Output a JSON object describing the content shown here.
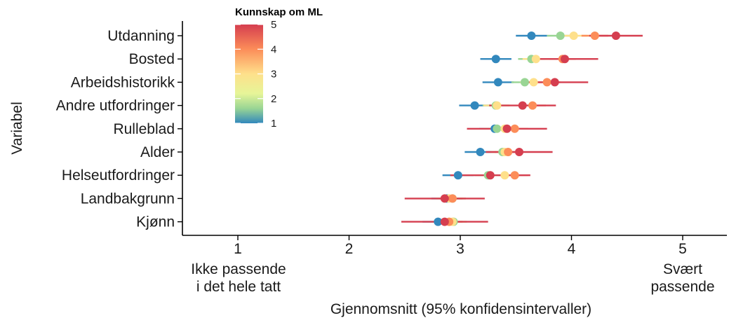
{
  "chart_data": {
    "type": "scatter",
    "xlabel": "Gjennomsnitt (95% konfidensintervaller)",
    "ylabel": "Variabel",
    "xlim": [
      0.5,
      5.35
    ],
    "xticks": [
      1,
      2,
      3,
      4,
      5
    ],
    "x_end_labels": {
      "low": [
        "Ikke passende",
        "i det hele tatt"
      ],
      "high": [
        "Svært",
        "passende"
      ]
    },
    "legend": {
      "title": "Kunnskap om ML",
      "ticks": [
        5,
        4,
        3,
        2,
        1
      ],
      "colors": [
        "#d53e4f",
        "#fc8d59",
        "#fee08b",
        "#e6f598",
        "#99d594",
        "#3288bd"
      ]
    },
    "categories": [
      "Utdanning",
      "Bosted",
      "Arbeidshistorikk",
      "Andre utfordringer",
      "Rulleblad",
      "Alder",
      "Helseutfordringer",
      "Landbakgrunn",
      "Kjønn"
    ],
    "series": [
      {
        "name": "1",
        "color": "#3288bd",
        "means": [
          3.64,
          3.32,
          3.34,
          3.13,
          3.31,
          3.18,
          2.98,
          2.88,
          2.8
        ],
        "ci_low": [
          3.5,
          3.18,
          3.2,
          2.99,
          3.17,
          3.04,
          2.84,
          2.74,
          2.66
        ],
        "ci_high": [
          3.78,
          3.46,
          3.48,
          3.27,
          3.45,
          3.32,
          3.12,
          3.02,
          2.94
        ]
      },
      {
        "name": "2",
        "color": "#99d594",
        "means": [
          3.9,
          3.64,
          3.58,
          3.32,
          3.33,
          3.38,
          3.25,
          2.93,
          2.94
        ],
        "ci_low": [
          3.78,
          3.52,
          3.46,
          3.2,
          3.21,
          3.26,
          3.13,
          2.81,
          2.82
        ],
        "ci_high": [
          4.02,
          3.76,
          3.7,
          3.44,
          3.45,
          3.5,
          3.37,
          3.05,
          3.06
        ]
      },
      {
        "name": "3",
        "color": "#fee08b",
        "means": [
          4.02,
          3.68,
          3.66,
          3.33,
          3.4,
          3.4,
          3.4,
          2.9,
          2.93
        ],
        "ci_low": [
          3.9,
          3.56,
          3.54,
          3.21,
          3.28,
          3.28,
          3.28,
          2.78,
          2.81
        ],
        "ci_high": [
          4.14,
          3.8,
          3.78,
          3.45,
          3.52,
          3.52,
          3.52,
          3.02,
          3.05
        ]
      },
      {
        "name": "4",
        "color": "#fc8d59",
        "means": [
          4.21,
          3.92,
          3.78,
          3.65,
          3.49,
          3.43,
          3.49,
          2.93,
          2.9
        ],
        "ci_low": [
          4.09,
          3.8,
          3.66,
          3.53,
          3.37,
          3.31,
          3.37,
          2.81,
          2.78
        ],
        "ci_high": [
          4.33,
          4.04,
          3.9,
          3.77,
          3.61,
          3.55,
          3.61,
          3.05,
          3.02
        ]
      },
      {
        "name": "5",
        "color": "#d53e4f",
        "means": [
          4.4,
          3.94,
          3.85,
          3.56,
          3.42,
          3.53,
          3.27,
          2.86,
          2.86
        ],
        "ci_low": [
          4.16,
          3.64,
          3.55,
          3.26,
          3.06,
          3.23,
          2.91,
          2.5,
          2.47
        ],
        "ci_high": [
          4.64,
          4.24,
          4.15,
          3.86,
          3.78,
          3.83,
          3.63,
          3.22,
          3.25
        ]
      }
    ]
  }
}
